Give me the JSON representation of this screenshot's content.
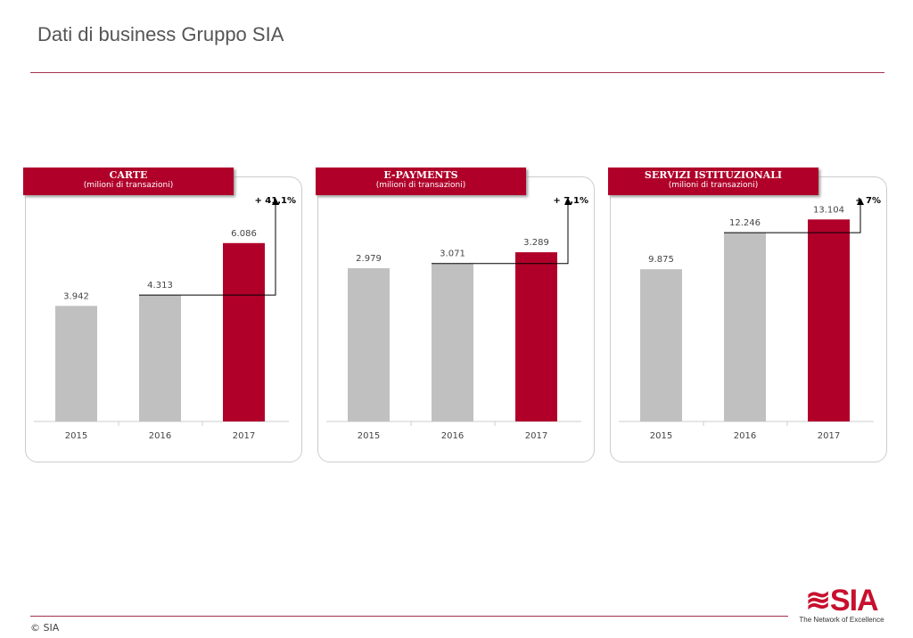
{
  "page": {
    "title": "Dati di business Gruppo SIA",
    "footer": "© SIA",
    "logo_text": "≋SIA",
    "logo_tagline": "The Network of Excellence"
  },
  "colors": {
    "accent": "#b0002a",
    "bar": "#c0c0c0"
  },
  "chart_data": [
    {
      "type": "bar",
      "title": "CARTE",
      "subtitle": "(milioni di transazioni)",
      "categories": [
        "2015",
        "2016",
        "2017"
      ],
      "values": [
        3.942,
        4.313,
        6.086
      ],
      "labels": [
        "3.942",
        "4.313",
        "6.086"
      ],
      "growth": "+ 41,1%",
      "ylim": [
        0,
        7.6
      ]
    },
    {
      "type": "bar",
      "title": "E-PAYMENTS",
      "subtitle": "(milioni di transazioni)",
      "categories": [
        "2015",
        "2016",
        "2017"
      ],
      "values": [
        2.979,
        3.071,
        3.289
      ],
      "labels": [
        "2.979",
        "3.071",
        "3.289"
      ],
      "growth": "+ 7,1%",
      "ylim": [
        0,
        4.33
      ]
    },
    {
      "type": "bar",
      "title": "SERVIZI ISTITUZIONALI",
      "subtitle": "(milioni di transazioni)",
      "categories": [
        "2015",
        "2016",
        "2017"
      ],
      "values": [
        9.875,
        12.246,
        13.104
      ],
      "labels": [
        "9.875",
        "12.246",
        "13.104"
      ],
      "growth": "+ 7%",
      "ylim": [
        0,
        14.45
      ]
    }
  ]
}
